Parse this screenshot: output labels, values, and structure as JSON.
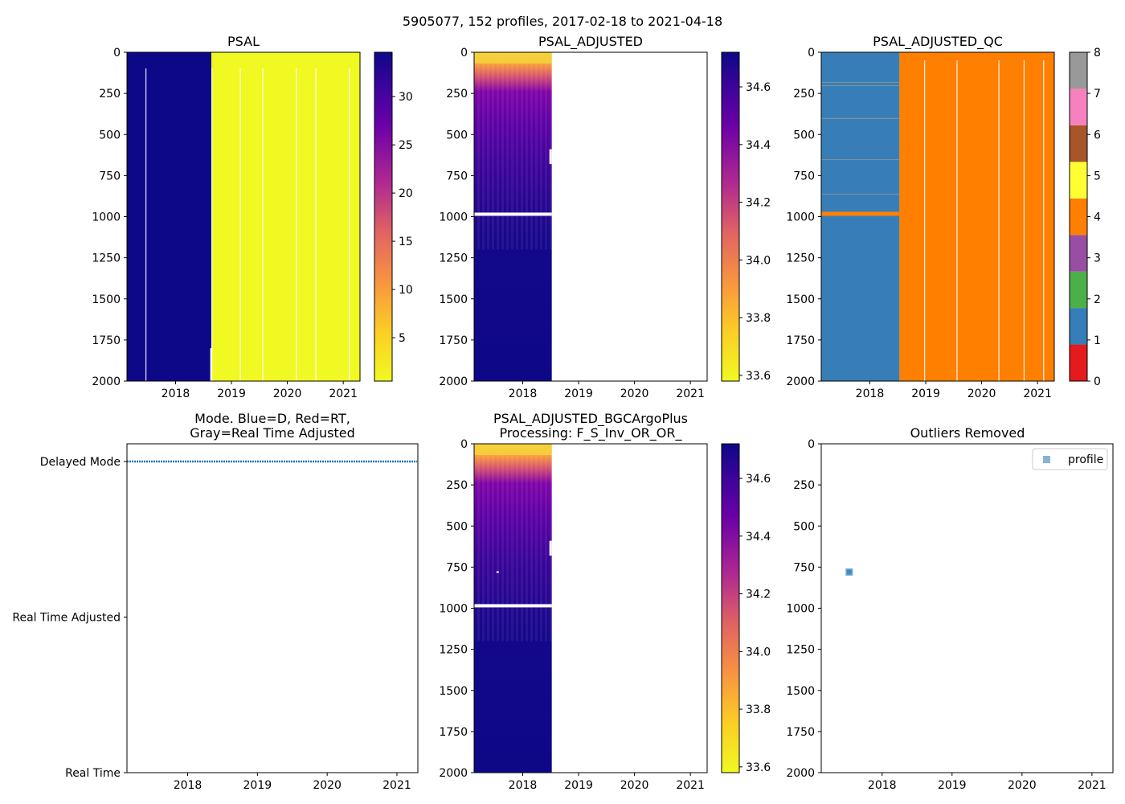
{
  "suptitle": "5905077, 152 profiles, 2017-02-18 to 2021-04-18",
  "colors": {
    "psal_blue": "#0d0887",
    "psal_yellow": "#f0f921",
    "qc_blue": "#377eb8",
    "qc_orange": "#ff7f00",
    "mode_line": "#1f77b4",
    "outlier_marker": "#1f77b4"
  },
  "chart_data": [
    {
      "id": "psal",
      "type": "heatmap",
      "title": "PSAL",
      "xlim": [
        2017.13,
        2021.3
      ],
      "ylim": [
        2000,
        0
      ],
      "xticks": [
        "2018",
        "2019",
        "2020",
        "2021"
      ],
      "yticks": [
        "0",
        "250",
        "500",
        "750",
        "1000",
        "1250",
        "1500",
        "1750",
        "2000"
      ],
      "blocks": [
        {
          "x0": 2017.13,
          "x1": 2018.64,
          "y0": 0,
          "y1": 2000,
          "value": 34.5
        },
        {
          "x0": 2018.64,
          "x1": 2021.3,
          "y0": 0,
          "y1": 2000,
          "value": 0.5
        }
      ],
      "gaps": [
        2017.46,
        2018.64,
        2019.15,
        2019.55,
        2020.15,
        2020.5,
        2021.1
      ],
      "colorbar": {
        "cmap": "plasma_r",
        "range": [
          0.5,
          34.6
        ],
        "ticks": [
          "5",
          "10",
          "15",
          "20",
          "25",
          "30"
        ],
        "tick_values": [
          5,
          10,
          15,
          20,
          25,
          30
        ]
      }
    },
    {
      "id": "psal_adjusted",
      "type": "heatmap",
      "title": "PSAL_ADJUSTED",
      "xlim": [
        2017.13,
        2021.3
      ],
      "ylim": [
        2000,
        0
      ],
      "xticks": [
        "2018",
        "2019",
        "2020",
        "2021"
      ],
      "yticks": [
        "0",
        "250",
        "500",
        "750",
        "1000",
        "1250",
        "1500",
        "1750",
        "2000"
      ],
      "data_x_range": [
        2017.13,
        2018.52
      ],
      "profile_depth_values": [
        {
          "depth": 0,
          "value": 33.62
        },
        {
          "depth": 80,
          "value": 33.75
        },
        {
          "depth": 150,
          "value": 34.1
        },
        {
          "depth": 250,
          "value": 34.45
        },
        {
          "depth": 400,
          "value": 34.55
        },
        {
          "depth": 600,
          "value": 34.6
        },
        {
          "depth": 900,
          "value": 34.65
        },
        {
          "depth": 2000,
          "value": 34.72
        }
      ],
      "missing_band_depth": 985,
      "colorbar": {
        "cmap": "plasma_r",
        "range": [
          33.58,
          34.72
        ],
        "ticks": [
          "33.6",
          "33.8",
          "34.0",
          "34.2",
          "34.4",
          "34.6"
        ],
        "tick_values": [
          33.6,
          33.8,
          34.0,
          34.2,
          34.4,
          34.6
        ]
      }
    },
    {
      "id": "psal_adjusted_qc",
      "type": "heatmap",
      "title": "PSAL_ADJUSTED_QC",
      "xlim": [
        2017.13,
        2021.3
      ],
      "ylim": [
        2000,
        0
      ],
      "xticks": [
        "2018",
        "2019",
        "2020",
        "2021"
      ],
      "yticks": [
        "0",
        "250",
        "500",
        "750",
        "1000",
        "1250",
        "1500",
        "1750",
        "2000"
      ],
      "blocks": [
        {
          "x0": 2017.13,
          "x1": 2018.53,
          "y0": 0,
          "y1": 2000,
          "qc": 1
        },
        {
          "x0": 2018.53,
          "x1": 2021.3,
          "y0": 0,
          "y1": 2000,
          "qc": 4
        },
        {
          "x0": 2017.13,
          "x1": 2018.53,
          "y0": 970,
          "y1": 995,
          "qc": 4
        }
      ],
      "gaps": [
        2018.97,
        2019.55,
        2020.3,
        2020.75,
        2021.1
      ],
      "colorbar": {
        "cmap": "Set1",
        "range": [
          0,
          8
        ],
        "ticks": [
          "0",
          "1",
          "2",
          "3",
          "4",
          "5",
          "6",
          "7",
          "8"
        ],
        "tick_values": [
          0,
          1,
          2,
          3,
          4,
          5,
          6,
          7,
          8
        ],
        "class_colors": [
          "#e41a1c",
          "#377eb8",
          "#4daf4a",
          "#984ea3",
          "#ff7f00",
          "#ffff33",
          "#a65628",
          "#f781bf",
          "#999999"
        ]
      }
    },
    {
      "id": "mode",
      "type": "line",
      "title_line1": "Mode. Blue=D, Red=RT,",
      "title_line2": "Gray=Real Time Adjusted",
      "xlim": [
        2017.13,
        2021.3
      ],
      "xticks": [
        "2018",
        "2019",
        "2020",
        "2021"
      ],
      "ycategories": [
        "Delayed Mode",
        "Real Time Adjusted",
        "Real Time"
      ],
      "series": [
        {
          "name": "D",
          "x_start": 2017.13,
          "x_end": 2021.29,
          "y": "Delayed Mode"
        }
      ]
    },
    {
      "id": "psal_adjusted_bgc",
      "type": "heatmap",
      "title_line1": "PSAL_ADJUSTED_BGCArgoPlus",
      "title_line2": "Processing: F_S_Inv_OR_OR_",
      "xlim": [
        2017.13,
        2021.3
      ],
      "ylim": [
        2000,
        0
      ],
      "xticks": [
        "2018",
        "2019",
        "2020",
        "2021"
      ],
      "yticks": [
        "0",
        "250",
        "500",
        "750",
        "1000",
        "1250",
        "1500",
        "1750",
        "2000"
      ],
      "data_x_range": [
        2017.13,
        2018.52
      ],
      "missing_band_depth": 985,
      "colorbar": {
        "cmap": "plasma_r",
        "range": [
          33.58,
          34.72
        ],
        "ticks": [
          "33.6",
          "33.8",
          "34.0",
          "34.2",
          "34.4",
          "34.6"
        ],
        "tick_values": [
          33.6,
          33.8,
          34.0,
          34.2,
          34.4,
          34.6
        ]
      }
    },
    {
      "id": "outliers",
      "type": "scatter",
      "title": "Outliers Removed",
      "xlim": [
        2017.13,
        2021.3
      ],
      "ylim": [
        2000,
        0
      ],
      "xticks": [
        "2018",
        "2019",
        "2020",
        "2021"
      ],
      "yticks": [
        "0",
        "250",
        "500",
        "750",
        "1000",
        "1250",
        "1500",
        "1750",
        "2000"
      ],
      "legend": {
        "label": "profile",
        "position": "upper right"
      },
      "points": [
        {
          "x": 2017.53,
          "y": 780
        }
      ]
    }
  ]
}
